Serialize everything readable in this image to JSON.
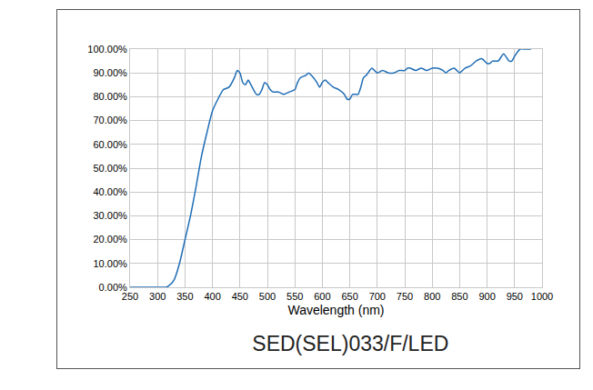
{
  "chart_data": {
    "type": "line",
    "title": "SED(SEL)033/F/LED",
    "x_label": "Wavelength (nm)",
    "color": "#1f6db5",
    "grid": true,
    "x": [
      250,
      270,
      290,
      310,
      315,
      320,
      330,
      340,
      350,
      360,
      370,
      380,
      390,
      400,
      410,
      420,
      430,
      440,
      445,
      450,
      455,
      460,
      465,
      470,
      480,
      485,
      490,
      495,
      500,
      505,
      510,
      520,
      530,
      540,
      550,
      555,
      560,
      570,
      575,
      580,
      590,
      595,
      600,
      605,
      610,
      620,
      630,
      640,
      645,
      650,
      655,
      660,
      665,
      670,
      675,
      680,
      690,
      695,
      700,
      710,
      720,
      730,
      740,
      750,
      755,
      760,
      770,
      780,
      790,
      800,
      810,
      820,
      825,
      830,
      840,
      845,
      850,
      855,
      860,
      870,
      880,
      890,
      900,
      905,
      910,
      920,
      930,
      940,
      945,
      950,
      960,
      970,
      980
    ],
    "values": [
      0,
      0,
      0,
      0,
      0,
      0.5,
      3,
      10,
      20,
      30,
      42,
      55,
      65,
      74,
      79,
      83,
      84,
      88,
      91,
      90,
      86,
      85,
      87,
      85,
      81,
      81,
      83,
      86,
      85,
      83,
      82,
      82,
      81,
      82,
      83,
      86,
      88,
      89,
      90,
      89,
      86,
      84,
      86,
      87,
      86,
      84,
      83,
      81,
      79,
      79,
      81,
      81,
      81,
      84,
      88,
      89,
      92,
      91,
      90,
      91,
      90,
      90,
      91,
      91,
      92,
      92,
      91,
      92,
      91,
      92,
      92,
      91,
      90,
      91,
      92,
      91,
      90,
      91,
      92,
      93,
      95,
      96,
      94,
      94,
      95,
      95,
      98,
      95,
      95,
      97,
      100,
      100,
      100
    ],
    "xlim": [
      250,
      1000
    ],
    "xticks": [
      250,
      300,
      350,
      400,
      450,
      500,
      550,
      600,
      650,
      700,
      750,
      800,
      850,
      900,
      950,
      1000
    ],
    "ylim": [
      0,
      100
    ],
    "yticks": [
      {
        "value": 0,
        "label": "0.00%"
      },
      {
        "value": 10,
        "label": "10.00%"
      },
      {
        "value": 20,
        "label": "20.00%"
      },
      {
        "value": 30,
        "label": "30.00%"
      },
      {
        "value": 40,
        "label": "40.00%"
      },
      {
        "value": 50,
        "label": "50.00%"
      },
      {
        "value": 60,
        "label": "60.00%"
      },
      {
        "value": 70,
        "label": "70.00%"
      },
      {
        "value": 80,
        "label": "80.00%"
      },
      {
        "value": 90,
        "label": "90.00%"
      },
      {
        "value": 100,
        "label": "100.00%"
      }
    ]
  }
}
